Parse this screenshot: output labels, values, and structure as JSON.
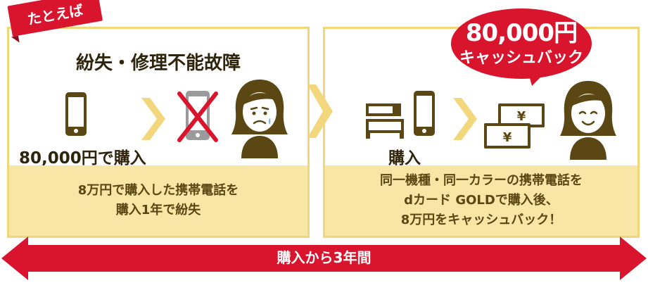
{
  "colors": {
    "brand_red": "#d9152e",
    "panel_border": "#f0d77a",
    "panel_fill": "#f7e6a5",
    "dark_text": "#2f240c",
    "icon_brown": "#5a4713",
    "arrow_yellow": "#f2d77c",
    "phone_gray": "#9a9a9a"
  },
  "left_panel": {
    "tag": "たとえば",
    "title": "紛失・修理不能故障",
    "price_label": "80,000円で購入",
    "note": "8万円で購入した携帯電話を\n購入1年で紛失"
  },
  "right_panel": {
    "cashback_amount": "80,000円",
    "cashback_label": "キャッシュバック",
    "purchase_label": "購入",
    "note": "同一機種・同一カラーの携帯電話を\ndカード GOLDで購入後、\n8万円をキャッシュバック！",
    "yen_symbol": "¥"
  },
  "timeline": {
    "label": "購入から3年間"
  },
  "icons": [
    "phone-icon",
    "lost-phone-icon",
    "sad-woman-icon",
    "store-counter-icon",
    "new-phone-icon",
    "cash-icon",
    "happy-woman-icon",
    "chevron-right-icon"
  ]
}
